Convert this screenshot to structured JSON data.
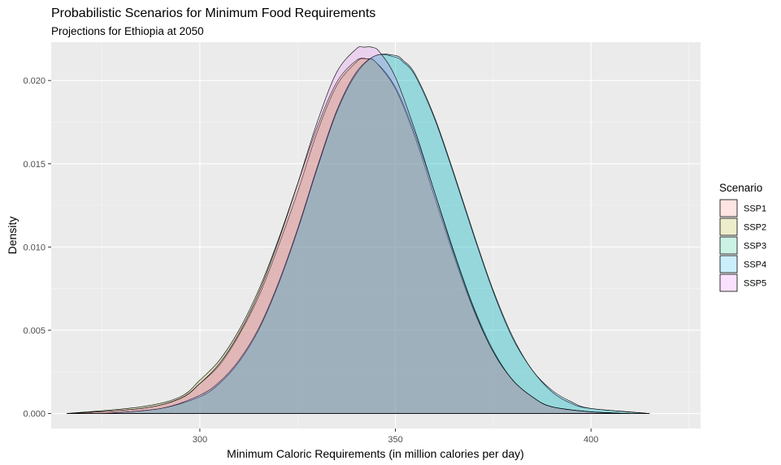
{
  "chart_data": {
    "type": "area",
    "title": "Probabilistic Scenarios for Minimum Food Requirements",
    "subtitle": "Projections for Ethiopia at 2050",
    "xlabel": "Minimum Caloric Requirements (in million calories per day)",
    "ylabel": "Density",
    "xlim": [
      262,
      428
    ],
    "ylim": [
      -0.0009,
      0.0223
    ],
    "x_ticks": [
      300,
      350,
      400
    ],
    "y_ticks": [
      0.0,
      0.005,
      0.01,
      0.015,
      0.02
    ],
    "y_tick_labels": [
      "0.000",
      "0.005",
      "0.010",
      "0.015",
      "0.020"
    ],
    "x_minor": [
      275,
      325,
      375,
      425
    ],
    "y_minor": [
      0.0025,
      0.0075,
      0.0125,
      0.0175
    ],
    "grid": true,
    "legend": {
      "title": "Scenario",
      "position": "right"
    },
    "series": [
      {
        "name": "SSP1",
        "color": "#F8766D",
        "x": [
          266,
          285,
          295,
          300,
          305,
          310,
          315,
          320,
          325,
          330,
          335,
          340,
          342,
          345,
          350,
          355,
          360,
          365,
          370,
          375,
          380,
          385,
          390,
          400,
          410
        ],
        "y": [
          0.0,
          0.0003,
          0.0009,
          0.0018,
          0.0029,
          0.0047,
          0.007,
          0.01,
          0.0133,
          0.0169,
          0.0197,
          0.0211,
          0.0213,
          0.0211,
          0.0196,
          0.0168,
          0.0133,
          0.0097,
          0.0064,
          0.0038,
          0.002,
          0.001,
          0.0004,
          0.0001,
          0.0
        ]
      },
      {
        "name": "SSP2",
        "color": "#A3A500",
        "x": [
          266,
          285,
          295,
          300,
          305,
          310,
          315,
          320,
          325,
          330,
          335,
          340,
          343,
          345,
          350,
          355,
          360,
          365,
          370,
          375,
          380,
          385,
          390,
          400,
          410
        ],
        "y": [
          0.0,
          0.0004,
          0.001,
          0.002,
          0.0032,
          0.005,
          0.0074,
          0.0104,
          0.0138,
          0.0172,
          0.0199,
          0.0212,
          0.0213,
          0.0211,
          0.0195,
          0.0166,
          0.013,
          0.0094,
          0.0062,
          0.0037,
          0.002,
          0.001,
          0.0004,
          0.0001,
          0.0
        ]
      },
      {
        "name": "SSP3",
        "color": "#00BF7D",
        "x": [
          275,
          290,
          300,
          305,
          310,
          315,
          320,
          325,
          330,
          335,
          340,
          345,
          350,
          352,
          355,
          360,
          365,
          370,
          375,
          380,
          385,
          390,
          395,
          400,
          415
        ],
        "y": [
          0.0,
          0.0003,
          0.001,
          0.0018,
          0.0031,
          0.005,
          0.0077,
          0.011,
          0.0147,
          0.0181,
          0.0204,
          0.0215,
          0.0214,
          0.0211,
          0.0203,
          0.0177,
          0.0143,
          0.0107,
          0.0073,
          0.0045,
          0.0026,
          0.0013,
          0.0006,
          0.0003,
          0.0
        ]
      },
      {
        "name": "SSP4",
        "color": "#00B0F6",
        "x": [
          275,
          290,
          300,
          305,
          310,
          315,
          320,
          325,
          330,
          335,
          340,
          345,
          350,
          352,
          355,
          360,
          365,
          370,
          375,
          380,
          385,
          390,
          395,
          400,
          415
        ],
        "y": [
          0.0,
          0.0003,
          0.0011,
          0.0019,
          0.0032,
          0.0051,
          0.0078,
          0.0111,
          0.0148,
          0.0182,
          0.0205,
          0.0215,
          0.0215,
          0.0212,
          0.0204,
          0.0178,
          0.0144,
          0.0108,
          0.0074,
          0.0046,
          0.0026,
          0.0014,
          0.0007,
          0.0003,
          0.0
        ]
      },
      {
        "name": "SSP5",
        "color": "#E76BF3",
        "x": [
          266,
          285,
          295,
          300,
          305,
          310,
          315,
          320,
          325,
          330,
          335,
          340,
          342,
          344,
          346,
          350,
          355,
          360,
          365,
          370,
          375,
          380,
          385,
          390,
          400,
          410
        ],
        "y": [
          0.0,
          0.0003,
          0.0009,
          0.0018,
          0.003,
          0.0048,
          0.0072,
          0.0103,
          0.0138,
          0.0175,
          0.0205,
          0.0219,
          0.022,
          0.022,
          0.0217,
          0.0202,
          0.017,
          0.0133,
          0.0096,
          0.0063,
          0.0037,
          0.002,
          0.001,
          0.0004,
          0.0001,
          0.0
        ]
      }
    ]
  }
}
